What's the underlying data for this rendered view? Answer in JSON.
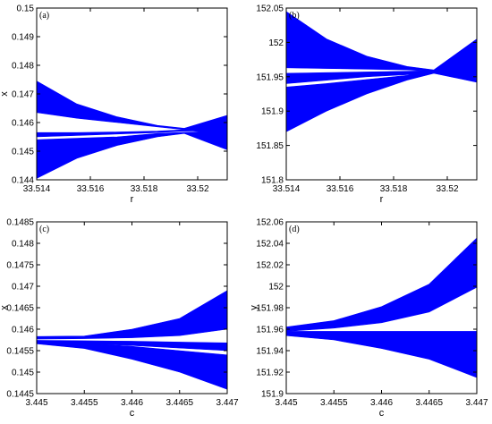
{
  "chart_data": [
    {
      "type": "area",
      "panel_label": "(a)",
      "xlabel": "r",
      "ylabel": "x",
      "xlim": [
        33.514,
        33.5211
      ],
      "ylim": [
        0.144,
        0.15
      ],
      "xticks": [
        "33.514",
        "33.516",
        "33.518",
        "33.52"
      ],
      "xtick_values": [
        33.514,
        33.516,
        33.518,
        33.52
      ],
      "yticks": [
        "0.144",
        "0.145",
        "0.146",
        "0.147",
        "0.148",
        "0.149",
        "0.15"
      ],
      "ytick_values": [
        0.144,
        0.145,
        0.146,
        0.147,
        0.148,
        0.149,
        0.15
      ],
      "color": "#0000ff",
      "bands": [
        {
          "x": [
            33.514,
            33.5155,
            33.517,
            33.5185,
            33.5195,
            33.5211
          ],
          "y_low": [
            0.14635,
            0.14615,
            0.146,
            0.14585,
            0.14575,
            0.14555
          ],
          "y_high": [
            0.14745,
            0.14665,
            0.1462,
            0.1459,
            0.1458,
            0.14625
          ]
        },
        {
          "x": [
            33.514,
            33.5155,
            33.517,
            33.5185,
            33.5195,
            33.5211
          ],
          "y_low": [
            0.1455,
            0.14555,
            0.1456,
            0.14565,
            0.1457,
            0.14572
          ],
          "y_high": [
            0.14565,
            0.14565,
            0.14567,
            0.1457,
            0.14575,
            0.14575
          ]
        },
        {
          "x": [
            33.514,
            33.5155,
            33.517,
            33.5185,
            33.5195,
            33.5211
          ],
          "y_low": [
            0.14405,
            0.14475,
            0.1452,
            0.1455,
            0.14562,
            0.14505
          ],
          "y_high": [
            0.1454,
            0.14545,
            0.1455,
            0.14562,
            0.14566,
            0.1457
          ]
        }
      ]
    },
    {
      "type": "area",
      "panel_label": "(b)",
      "xlabel": "r",
      "ylabel": "",
      "xlim": [
        33.514,
        33.5211
      ],
      "ylim": [
        151.8,
        152.05
      ],
      "xticks": [
        "33.514",
        "33.516",
        "33.518",
        "33.52"
      ],
      "xtick_values": [
        33.514,
        33.516,
        33.518,
        33.52
      ],
      "yticks": [
        "151.8",
        "151.85",
        "151.9",
        "151.95",
        "152",
        "152.05"
      ],
      "ytick_values": [
        151.8,
        151.85,
        151.9,
        151.95,
        152.0,
        152.05
      ],
      "color": "#0000ff",
      "bands": [
        {
          "x": [
            33.514,
            33.5155,
            33.517,
            33.5185,
            33.5195,
            33.5211
          ],
          "y_low": [
            151.963,
            151.962,
            151.961,
            151.96,
            151.958,
            151.952
          ],
          "y_high": [
            152.045,
            152.005,
            151.98,
            151.965,
            151.96,
            151.955
          ]
        },
        {
          "x": [
            33.514,
            33.5155,
            33.517,
            33.5185,
            33.5195,
            33.5211
          ],
          "y_low": [
            151.94,
            151.945,
            151.95,
            151.953,
            151.956,
            151.956
          ],
          "y_high": [
            151.955,
            151.956,
            151.957,
            151.958,
            151.959,
            151.96
          ]
        },
        {
          "x": [
            33.514,
            33.5155,
            33.517,
            33.5185,
            33.5195,
            33.5211
          ],
          "y_low": [
            151.87,
            151.9,
            151.925,
            151.945,
            151.955,
            151.942
          ],
          "y_high": [
            151.935,
            151.94,
            151.946,
            151.952,
            151.96,
            152.005
          ]
        }
      ]
    },
    {
      "type": "area",
      "panel_label": "(c)",
      "xlabel": "c",
      "ylabel": "x",
      "xlim": [
        3.445,
        3.447
      ],
      "ylim": [
        0.1445,
        0.1485
      ],
      "xticks": [
        "3.445",
        "3.4455",
        "3.446",
        "3.4465",
        "3.447"
      ],
      "xtick_values": [
        3.445,
        3.4455,
        3.446,
        3.4465,
        3.447
      ],
      "yticks": [
        "0.1445",
        "0.145",
        "0.1455",
        "0.146",
        "0.1465",
        "0.147",
        "0.1475",
        "0.148",
        "0.1485"
      ],
      "ytick_values": [
        0.1445,
        0.145,
        0.1455,
        0.146,
        0.1465,
        0.147,
        0.1475,
        0.148,
        0.1485
      ],
      "color": "#0000ff",
      "bands": [
        {
          "x": [
            3.445,
            3.4455,
            3.446,
            3.4465,
            3.447
          ],
          "y_low": [
            0.14577,
            0.14578,
            0.1458,
            0.14585,
            0.146
          ],
          "y_high": [
            0.14583,
            0.14584,
            0.146,
            0.14625,
            0.1469
          ]
        },
        {
          "x": [
            3.445,
            3.4455,
            3.446,
            3.4465,
            3.447
          ],
          "y_low": [
            0.14568,
            0.14566,
            0.14562,
            0.14556,
            0.1455
          ],
          "y_high": [
            0.14574,
            0.14573,
            0.14572,
            0.1457,
            0.14568
          ]
        },
        {
          "x": [
            3.445,
            3.4455,
            3.446,
            3.4465,
            3.447
          ],
          "y_low": [
            0.14566,
            0.14555,
            0.1453,
            0.145,
            0.1446
          ],
          "y_high": [
            0.1457,
            0.14567,
            0.1456,
            0.1455,
            0.1454
          ]
        }
      ]
    },
    {
      "type": "area",
      "panel_label": "(d)",
      "xlabel": "c",
      "ylabel": "y",
      "xlim": [
        3.445,
        3.447
      ],
      "ylim": [
        151.9,
        152.06
      ],
      "xticks": [
        "3.445",
        "3.4455",
        "3.446",
        "3.4465",
        "3.447"
      ],
      "xtick_values": [
        3.445,
        3.4455,
        3.446,
        3.4465,
        3.447
      ],
      "yticks": [
        "151.9",
        "151.92",
        "151.94",
        "151.96",
        "151.98",
        "152",
        "152.02",
        "152.04",
        "152.06"
      ],
      "ytick_values": [
        151.9,
        151.92,
        151.94,
        151.96,
        151.98,
        152.0,
        152.02,
        152.04,
        152.06
      ],
      "color": "#0000ff",
      "bands": [
        {
          "x": [
            3.445,
            3.4455,
            3.446,
            3.4465,
            3.447
          ],
          "y_low": [
            151.958,
            151.961,
            151.966,
            151.976,
            151.999
          ],
          "y_high": [
            151.962,
            151.968,
            151.981,
            152.002,
            152.045
          ]
        },
        {
          "x": [
            3.445,
            3.4455,
            3.446,
            3.4465,
            3.447
          ],
          "y_low": [
            151.955,
            151.955,
            151.955,
            151.955,
            151.955
          ],
          "y_high": [
            151.958,
            151.958,
            151.958,
            151.958,
            151.958
          ]
        },
        {
          "x": [
            3.445,
            3.4455,
            3.446,
            3.4465,
            3.447
          ],
          "y_low": [
            151.954,
            151.95,
            151.942,
            151.932,
            151.915
          ],
          "y_high": [
            151.956,
            151.955,
            151.955,
            151.955,
            151.955
          ]
        }
      ]
    }
  ]
}
